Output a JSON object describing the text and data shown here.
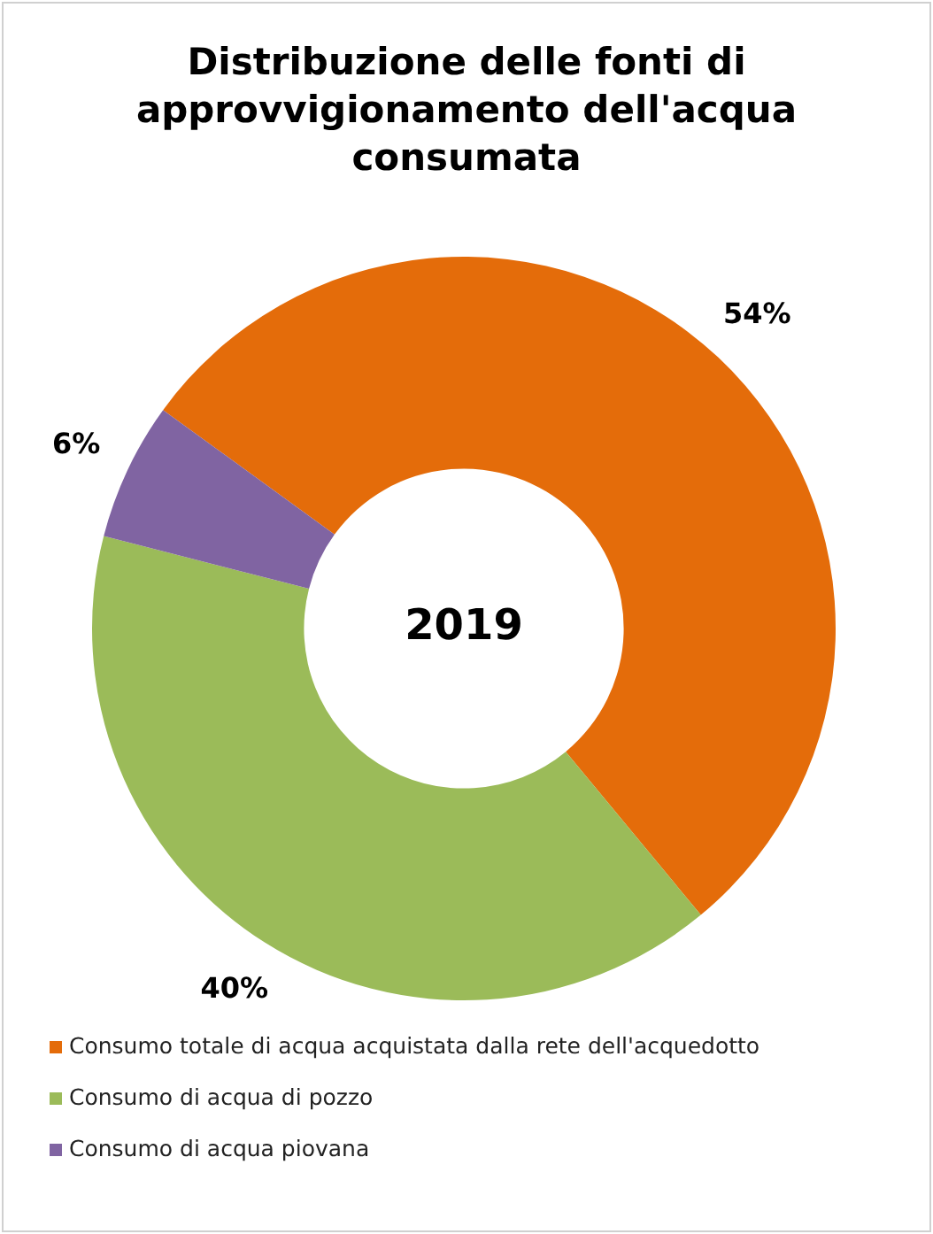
{
  "chart_data": {
    "type": "donut",
    "title": "Distribuzione delle fonti di approvvigionamento dell'acqua consumata",
    "categories": [
      "Consumo totale di acqua acquistata dalla rete dell'acquedotto",
      "Consumo di acqua di pozzo",
      "Consumo di acqua piovana"
    ],
    "values": [
      54,
      40,
      6
    ],
    "colors": [
      "#e46c0a",
      "#9bbb59",
      "#8064a2"
    ],
    "value_labels": [
      "54%",
      "40%",
      "6%"
    ],
    "annotations": [
      "2019"
    ],
    "legend": "bottom"
  }
}
